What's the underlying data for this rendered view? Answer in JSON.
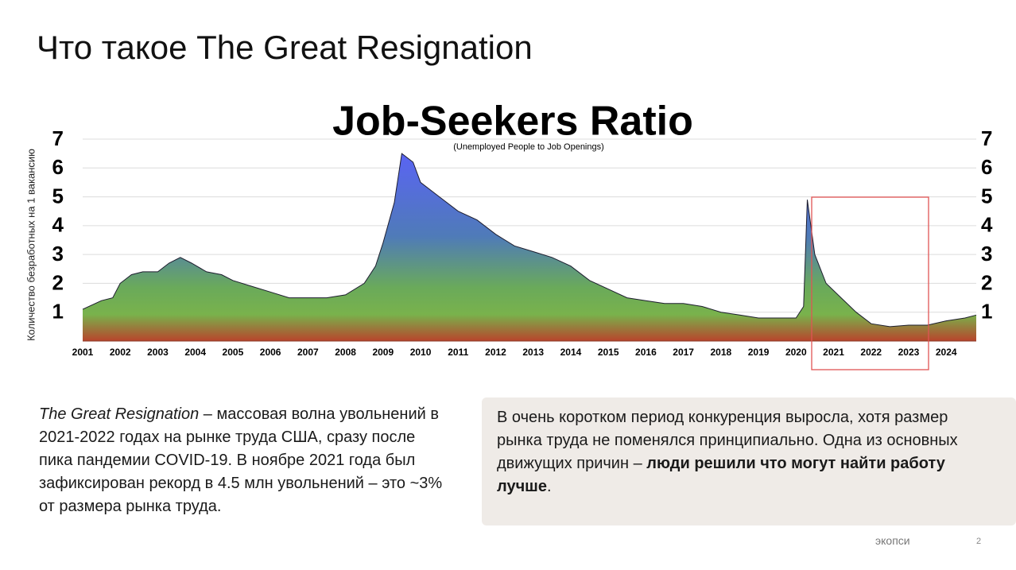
{
  "heading": "Что такое The Great Resignation",
  "chart_data": {
    "type": "area",
    "title": "Job-Seekers Ratio",
    "subtitle": "(Unemployed People to Job Openings)",
    "y_label": "Количество безработных на 1 вакансию",
    "x": [
      2001.0,
      2001.5,
      2001.8,
      2002.0,
      2002.3,
      2002.6,
      2003.0,
      2003.3,
      2003.6,
      2003.9,
      2004.3,
      2004.7,
      2005.0,
      2005.5,
      2006.0,
      2006.5,
      2007.0,
      2007.5,
      2008.0,
      2008.5,
      2008.8,
      2009.0,
      2009.3,
      2009.5,
      2009.8,
      2010.0,
      2010.5,
      2011.0,
      2011.5,
      2012.0,
      2012.5,
      2013.0,
      2013.5,
      2014.0,
      2014.5,
      2015.0,
      2015.5,
      2016.0,
      2016.5,
      2017.0,
      2017.5,
      2018.0,
      2018.5,
      2019.0,
      2019.5,
      2020.0,
      2020.2,
      2020.3,
      2020.5,
      2020.8,
      2021.2,
      2021.6,
      2022.0,
      2022.5,
      2023.0,
      2023.5,
      2024.0,
      2024.5,
      2024.8
    ],
    "values": [
      1.1,
      1.4,
      1.5,
      2.0,
      2.3,
      2.4,
      2.4,
      2.7,
      2.9,
      2.7,
      2.4,
      2.3,
      2.1,
      1.9,
      1.7,
      1.5,
      1.5,
      1.5,
      1.6,
      2.0,
      2.6,
      3.4,
      4.8,
      6.5,
      6.2,
      5.5,
      5.0,
      4.5,
      4.2,
      3.7,
      3.3,
      3.1,
      2.9,
      2.6,
      2.1,
      1.8,
      1.5,
      1.4,
      1.3,
      1.3,
      1.2,
      1.0,
      0.9,
      0.8,
      0.8,
      0.8,
      1.2,
      4.9,
      3.0,
      2.0,
      1.5,
      1.0,
      0.6,
      0.5,
      0.55,
      0.55,
      0.7,
      0.8,
      0.9
    ],
    "xlim": [
      2001,
      2024.8
    ],
    "xticks": [
      2001,
      2002,
      2003,
      2004,
      2005,
      2006,
      2007,
      2008,
      2009,
      2010,
      2011,
      2012,
      2013,
      2014,
      2015,
      2016,
      2017,
      2018,
      2019,
      2020,
      2021,
      2022,
      2023,
      2024
    ],
    "ylim": [
      0,
      7
    ],
    "yticks": [
      1,
      2,
      3,
      4,
      5,
      6,
      7
    ],
    "grid": true
  },
  "left_text": {
    "italic": "The Great Resignation",
    "body": " – массовая волна увольнений в 2021-2022 годах на рынке труда США, сразу после пика пандемии COVID-19. В ноябре 2021 года был зафиксирован рекорд в 4.5 млн увольнений – это ~3% от размера рынка труда."
  },
  "right_text": {
    "body": "В очень коротком период конкуренция выросла, хотя размер рынка труда не поменялся принципиально. Одна из основных движущих причин – ",
    "bold": "люди решили что могут найти работу лучше",
    "end": "."
  },
  "footer": {
    "brand": "экопси",
    "page": "2"
  }
}
